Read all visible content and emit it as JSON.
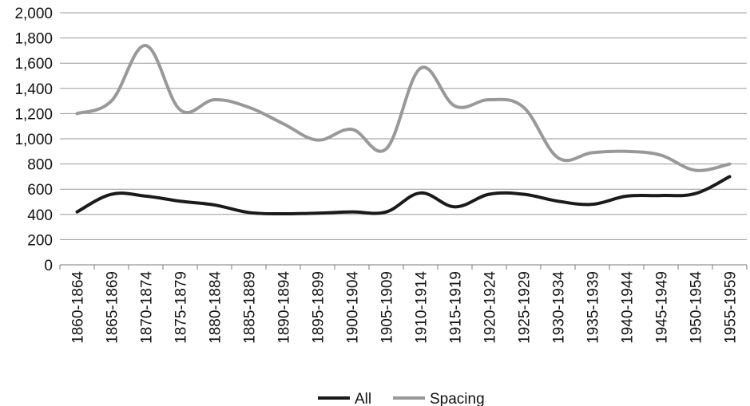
{
  "chart_data": {
    "type": "line",
    "title": "",
    "xlabel": "",
    "ylabel": "",
    "categories": [
      "1860-1864",
      "1865-1869",
      "1870-1874",
      "1875-1879",
      "1880-1884",
      "1885-1889",
      "1890-1894",
      "1895-1899",
      "1900-1904",
      "1905-1909",
      "1910-1914",
      "1915-1919",
      "1920-1924",
      "1925-1929",
      "1930-1934",
      "1935-1939",
      "1940-1944",
      "1945-1949",
      "1950-1954",
      "1955-1959"
    ],
    "y_ticks": [
      "0",
      "200",
      "400",
      "600",
      "800",
      "1,000",
      "1,200",
      "1,400",
      "1,600",
      "1,800",
      "2,000"
    ],
    "ylim": [
      0,
      2000
    ],
    "grid": true,
    "legend_position": "bottom",
    "series": [
      {
        "name": "All",
        "color": "#1a1a1a",
        "values": [
          420,
          560,
          545,
          505,
          475,
          415,
          405,
          410,
          420,
          420,
          570,
          460,
          560,
          560,
          505,
          480,
          545,
          550,
          565,
          700
        ]
      },
      {
        "name": "Spacing",
        "color": "#999999",
        "values": [
          1200,
          1300,
          1740,
          1230,
          1310,
          1250,
          1120,
          990,
          1075,
          920,
          1560,
          1260,
          1310,
          1250,
          850,
          890,
          900,
          870,
          750,
          800
        ]
      }
    ]
  }
}
